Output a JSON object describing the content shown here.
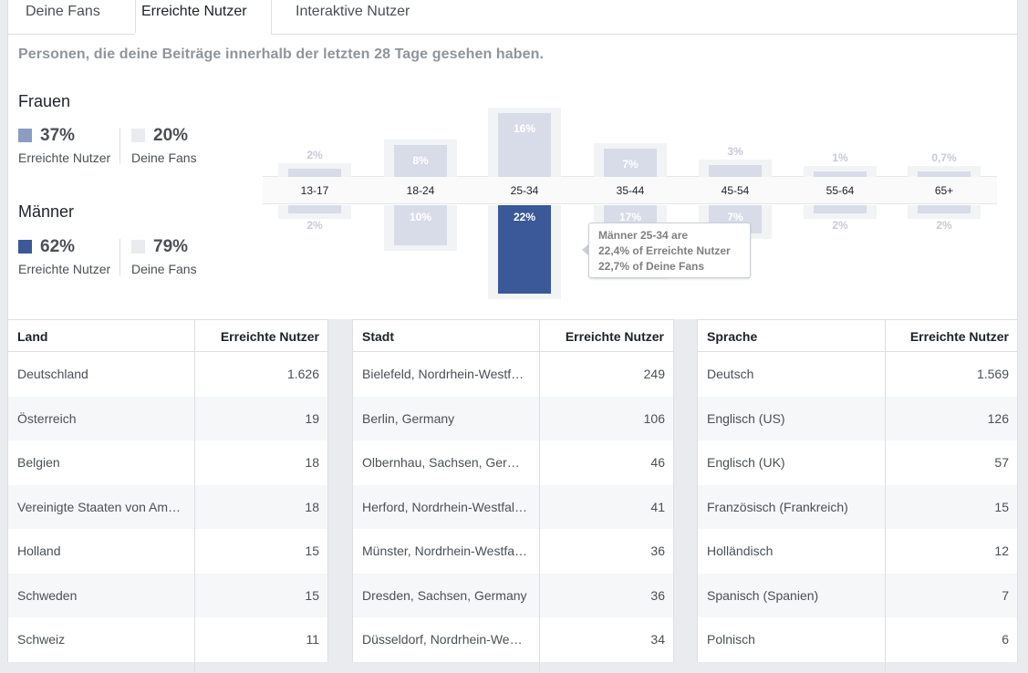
{
  "tabs": [
    {
      "label": "Deine Fans"
    },
    {
      "label": "Erreichte Nutzer"
    },
    {
      "label": "Interaktive Nutzer"
    }
  ],
  "subtitle": "Personen, die deine Beiträge innerhalb der letzten 28 Tage gesehen haben.",
  "women": {
    "title": "Frauen",
    "reached_pct": "37%",
    "reached_label": "Erreichte Nutzer",
    "fans_pct": "20%",
    "fans_label": "Deine Fans"
  },
  "men": {
    "title": "Männer",
    "reached_pct": "62%",
    "reached_label": "Erreichte Nutzer",
    "fans_pct": "79%",
    "fans_label": "Deine Fans"
  },
  "colors": {
    "women_reached": "#8b9dc3",
    "men_reached": "#3b5998",
    "fans": "#e9ebee"
  },
  "chart_data": {
    "type": "bar",
    "categories": [
      "13-17",
      "18-24",
      "25-34",
      "35-44",
      "45-54",
      "55-64",
      "65+"
    ],
    "series": [
      {
        "name": "Frauen",
        "values": [
          2,
          8,
          16,
          7,
          3,
          1,
          0.7
        ],
        "labels": [
          "2%",
          "8%",
          "16%",
          "7%",
          "3%",
          "1%",
          "0,7%"
        ]
      },
      {
        "name": "Männer",
        "values": [
          2,
          10,
          22,
          17,
          7,
          2,
          2
        ],
        "labels": [
          "2%",
          "10%",
          "22%",
          "17%",
          "7%",
          "2%",
          "2%"
        ]
      }
    ]
  },
  "tooltip": {
    "line1": "Männer 25-34 are",
    "line2": "22,4% of Erreichte Nutzer",
    "line3": "22,7% of Deine Fans"
  },
  "tables": {
    "countries": {
      "col1": "Land",
      "col2": "Erreichte Nutzer",
      "rows": [
        [
          "Deutschland",
          "1.626"
        ],
        [
          "Österreich",
          "19"
        ],
        [
          "Belgien",
          "18"
        ],
        [
          "Vereinigte Staaten von Am…",
          "18"
        ],
        [
          "Holland",
          "15"
        ],
        [
          "Schweden",
          "15"
        ],
        [
          "Schweiz",
          "11"
        ]
      ]
    },
    "cities": {
      "col1": "Stadt",
      "col2": "Erreichte Nutzer",
      "rows": [
        [
          "Bielefeld, Nordrhein-Westf…",
          "249"
        ],
        [
          "Berlin, Germany",
          "106"
        ],
        [
          "Olbernhau, Sachsen, Ger…",
          "46"
        ],
        [
          "Herford, Nordrhein-Westfal…",
          "41"
        ],
        [
          "Münster, Nordrhein-Westfa…",
          "36"
        ],
        [
          "Dresden, Sachsen, Germany",
          "36"
        ],
        [
          "Düsseldorf, Nordrhein-We…",
          "34"
        ]
      ]
    },
    "languages": {
      "col1": "Sprache",
      "col2": "Erreichte Nutzer",
      "rows": [
        [
          "Deutsch",
          "1.569"
        ],
        [
          "Englisch (US)",
          "126"
        ],
        [
          "Englisch (UK)",
          "57"
        ],
        [
          "Französisch (Frankreich)",
          "15"
        ],
        [
          "Holländisch",
          "12"
        ],
        [
          "Spanisch (Spanien)",
          "7"
        ],
        [
          "Polnisch",
          "6"
        ]
      ]
    }
  }
}
